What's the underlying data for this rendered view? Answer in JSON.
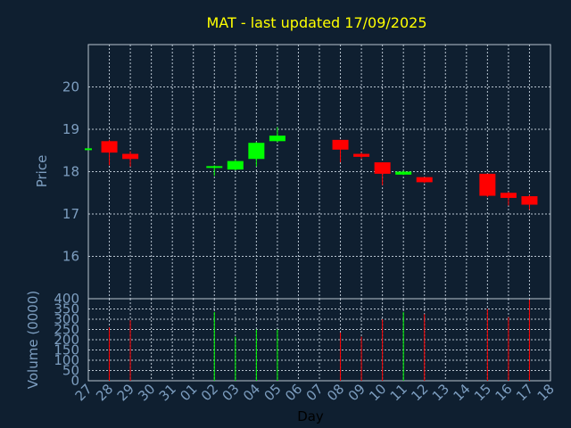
{
  "chart_data": {
    "type": "candlestick",
    "title": "MAT - last updated 17/09/2025",
    "ylabel_price": "Price",
    "ylabel_volume": "Volume (0000)",
    "xlabel": "Day",
    "price_ylim": [
      15.0,
      21.0
    ],
    "price_ticks": [
      16,
      17,
      18,
      19,
      20
    ],
    "volume_ylim": [
      0,
      400
    ],
    "volume_ticks": [
      0,
      50,
      100,
      150,
      200,
      250,
      300,
      350,
      400
    ],
    "x_tick_labels": [
      "27",
      "28",
      "29",
      "30",
      "31",
      "01",
      "02",
      "03",
      "04",
      "05",
      "06",
      "07",
      "08",
      "09",
      "10",
      "11",
      "12",
      "13",
      "14",
      "15",
      "16",
      "17",
      "18"
    ],
    "grid": true,
    "colors": {
      "up": "#00ff00",
      "down": "#ff0000",
      "title": "#ffff00",
      "axis_text": "#7d9ec0",
      "background": "#0f1f30"
    },
    "candles": [
      {
        "day": "27",
        "open": 18.55,
        "close": 18.55,
        "high": 18.55,
        "low": 18.55,
        "volume": 0
      },
      {
        "day": "28",
        "open": 18.72,
        "close": 18.45,
        "high": 18.75,
        "low": 18.15,
        "volume": 260
      },
      {
        "day": "29",
        "open": 18.42,
        "close": 18.3,
        "high": 18.48,
        "low": 18.12,
        "volume": 295
      },
      {
        "day": "02",
        "open": 18.1,
        "close": 18.13,
        "high": 18.15,
        "low": 17.9,
        "volume": 335
      },
      {
        "day": "03",
        "open": 18.05,
        "close": 18.25,
        "high": 18.28,
        "low": 18.03,
        "volume": 215
      },
      {
        "day": "04",
        "open": 18.3,
        "close": 18.68,
        "high": 18.7,
        "low": 18.12,
        "volume": 250
      },
      {
        "day": "05",
        "open": 18.72,
        "close": 18.85,
        "high": 19.05,
        "low": 18.7,
        "volume": 250
      },
      {
        "day": "08",
        "open": 18.75,
        "close": 18.52,
        "high": 18.75,
        "low": 18.22,
        "volume": 235
      },
      {
        "day": "09",
        "open": 18.42,
        "close": 18.35,
        "high": 18.45,
        "low": 18.3,
        "volume": 215
      },
      {
        "day": "10",
        "open": 18.22,
        "close": 17.95,
        "high": 18.22,
        "low": 17.68,
        "volume": 300
      },
      {
        "day": "11",
        "open": 17.93,
        "close": 18.0,
        "high": 18.02,
        "low": 17.92,
        "volume": 335
      },
      {
        "day": "12",
        "open": 17.87,
        "close": 17.75,
        "high": 17.87,
        "low": 17.73,
        "volume": 325
      },
      {
        "day": "15",
        "open": 17.95,
        "close": 17.43,
        "high": 17.95,
        "low": 17.4,
        "volume": 350
      },
      {
        "day": "16",
        "open": 17.5,
        "close": 17.38,
        "high": 17.52,
        "low": 17.2,
        "volume": 310
      },
      {
        "day": "17",
        "open": 17.42,
        "close": 17.22,
        "high": 17.45,
        "low": 17.1,
        "volume": 395
      }
    ]
  }
}
